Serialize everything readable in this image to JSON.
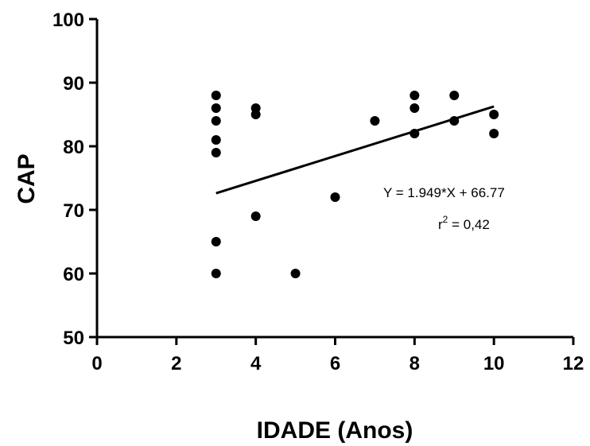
{
  "chart_data": {
    "type": "scatter",
    "title": "",
    "xlabel": "IDADE (Anos)",
    "ylabel": "CAP",
    "xlim": [
      0,
      12
    ],
    "ylim": [
      50,
      100
    ],
    "xticks": [
      0,
      2,
      4,
      6,
      8,
      10,
      12
    ],
    "yticks": [
      50,
      60,
      70,
      80,
      90,
      100
    ],
    "grid": false,
    "series": [
      {
        "name": "CAP",
        "points": [
          {
            "x": 3,
            "y": 88
          },
          {
            "x": 3,
            "y": 86
          },
          {
            "x": 3,
            "y": 84
          },
          {
            "x": 3,
            "y": 81
          },
          {
            "x": 3,
            "y": 79
          },
          {
            "x": 3,
            "y": 65
          },
          {
            "x": 3,
            "y": 60
          },
          {
            "x": 4,
            "y": 86
          },
          {
            "x": 4,
            "y": 85
          },
          {
            "x": 4,
            "y": 69
          },
          {
            "x": 5,
            "y": 60
          },
          {
            "x": 6,
            "y": 72
          },
          {
            "x": 7,
            "y": 84
          },
          {
            "x": 8,
            "y": 88
          },
          {
            "x": 8,
            "y": 86
          },
          {
            "x": 8,
            "y": 82
          },
          {
            "x": 9,
            "y": 88
          },
          {
            "x": 9,
            "y": 84
          },
          {
            "x": 10,
            "y": 85
          },
          {
            "x": 10,
            "y": 82
          }
        ]
      }
    ],
    "regression": {
      "slope": 1.949,
      "intercept": 66.77,
      "x_range": [
        3,
        10
      ]
    },
    "annotations": {
      "equation": "Y = 1.949*X + 66.77",
      "r2_prefix": "r",
      "r2_exponent": "2",
      "r2_suffix": " = 0,42"
    },
    "colors": {
      "marker": "#000000",
      "line": "#000000",
      "axis": "#000000"
    }
  }
}
